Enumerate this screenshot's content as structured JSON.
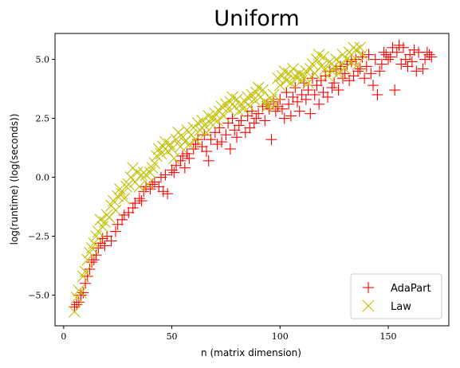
{
  "chart_data": {
    "type": "scatter",
    "title": "Uniform",
    "xlabel": "n (matrix dimension)",
    "ylabel": "log(runtime) (log(seconds))",
    "xlim": [
      -4,
      178
    ],
    "ylim": [
      -6.3,
      6.1
    ],
    "xticks": [
      0,
      50,
      100,
      150
    ],
    "yticks": [
      -5.0,
      -2.5,
      0.0,
      2.5,
      5.0
    ],
    "xtick_labels": [
      "0",
      "50",
      "100",
      "150"
    ],
    "ytick_labels": [
      "−5.0",
      "−2.5",
      "0.0",
      "2.5",
      "5.0"
    ],
    "grid": false,
    "legend_position": "lower-right",
    "series": [
      {
        "name": "AdaPart",
        "marker": "plus",
        "color": "#ff0000",
        "points": [
          [
            5,
            -5.5
          ],
          [
            6,
            -5.4
          ],
          [
            7,
            -5.3
          ],
          [
            8,
            -5.0
          ],
          [
            9,
            -4.9
          ],
          [
            10,
            -4.5
          ],
          [
            11,
            -4.2
          ],
          [
            12,
            -3.9
          ],
          [
            13,
            -3.6
          ],
          [
            14,
            -3.5
          ],
          [
            15,
            -3.3
          ],
          [
            16,
            -3.0
          ],
          [
            17,
            -2.8
          ],
          [
            18,
            -2.6
          ],
          [
            19,
            -2.9
          ],
          [
            20,
            -2.5
          ],
          [
            22,
            -2.7
          ],
          [
            24,
            -2.3
          ],
          [
            25,
            -2.0
          ],
          [
            27,
            -1.8
          ],
          [
            28,
            -1.6
          ],
          [
            30,
            -1.5
          ],
          [
            32,
            -1.3
          ],
          [
            33,
            -1.1
          ],
          [
            35,
            -0.9
          ],
          [
            36,
            -1.0
          ],
          [
            37,
            -0.6
          ],
          [
            38,
            -0.4
          ],
          [
            40,
            -0.5
          ],
          [
            41,
            -0.3
          ],
          [
            42,
            -0.2
          ],
          [
            44,
            -0.4
          ],
          [
            45,
            0.0
          ],
          [
            46,
            -0.6
          ],
          [
            47,
            0.1
          ],
          [
            48,
            -0.7
          ],
          [
            50,
            0.3
          ],
          [
            51,
            0.2
          ],
          [
            52,
            0.5
          ],
          [
            54,
            0.7
          ],
          [
            55,
            0.9
          ],
          [
            56,
            0.4
          ],
          [
            57,
            1.0
          ],
          [
            58,
            0.8
          ],
          [
            60,
            1.2
          ],
          [
            61,
            1.4
          ],
          [
            62,
            1.6
          ],
          [
            64,
            1.3
          ],
          [
            65,
            1.8
          ],
          [
            66,
            1.1
          ],
          [
            67,
            0.7
          ],
          [
            68,
            1.6
          ],
          [
            70,
            1.9
          ],
          [
            71,
            1.4
          ],
          [
            72,
            2.1
          ],
          [
            73,
            1.5
          ],
          [
            75,
            1.8
          ],
          [
            76,
            2.3
          ],
          [
            77,
            1.2
          ],
          [
            78,
            2.5
          ],
          [
            79,
            2.0
          ],
          [
            80,
            1.7
          ],
          [
            81,
            2.2
          ],
          [
            82,
            2.4
          ],
          [
            84,
            1.9
          ],
          [
            85,
            2.6
          ],
          [
            86,
            2.1
          ],
          [
            87,
            2.8
          ],
          [
            88,
            2.3
          ],
          [
            89,
            2.5
          ],
          [
            90,
            2.7
          ],
          [
            92,
            3.0
          ],
          [
            93,
            2.4
          ],
          [
            94,
            3.1
          ],
          [
            95,
            2.9
          ],
          [
            96,
            1.6
          ],
          [
            97,
            3.2
          ],
          [
            98,
            2.8
          ],
          [
            99,
            3.0
          ],
          [
            100,
            3.3
          ],
          [
            101,
            2.9
          ],
          [
            102,
            2.5
          ],
          [
            103,
            3.6
          ],
          [
            104,
            3.1
          ],
          [
            105,
            2.6
          ],
          [
            106,
            3.4
          ],
          [
            107,
            3.8
          ],
          [
            108,
            3.2
          ],
          [
            109,
            2.8
          ],
          [
            110,
            3.5
          ],
          [
            111,
            4.0
          ],
          [
            112,
            3.3
          ],
          [
            113,
            3.7
          ],
          [
            114,
            2.7
          ],
          [
            115,
            4.2
          ],
          [
            116,
            3.5
          ],
          [
            117,
            3.9
          ],
          [
            118,
            3.1
          ],
          [
            119,
            4.1
          ],
          [
            120,
            3.6
          ],
          [
            121,
            4.3
          ],
          [
            122,
            3.4
          ],
          [
            123,
            4.5
          ],
          [
            124,
            3.8
          ],
          [
            125,
            4.0
          ],
          [
            126,
            4.6
          ],
          [
            127,
            3.7
          ],
          [
            128,
            4.7
          ],
          [
            129,
            4.2
          ],
          [
            130,
            4.4
          ],
          [
            131,
            4.8
          ],
          [
            132,
            4.1
          ],
          [
            133,
            4.9
          ],
          [
            134,
            4.3
          ],
          [
            135,
            5.0
          ],
          [
            136,
            4.5
          ],
          [
            137,
            4.6
          ],
          [
            138,
            5.1
          ],
          [
            139,
            4.2
          ],
          [
            140,
            4.7
          ],
          [
            141,
            5.2
          ],
          [
            142,
            4.4
          ],
          [
            143,
            3.9
          ],
          [
            144,
            5.0
          ],
          [
            145,
            3.5
          ],
          [
            146,
            4.5
          ],
          [
            147,
            4.8
          ],
          [
            148,
            5.3
          ],
          [
            149,
            5.2
          ],
          [
            150,
            5.0
          ],
          [
            151,
            5.1
          ],
          [
            152,
            5.5
          ],
          [
            153,
            3.7
          ],
          [
            154,
            5.3
          ],
          [
            155,
            5.6
          ],
          [
            156,
            4.8
          ],
          [
            157,
            5.5
          ],
          [
            158,
            5.0
          ],
          [
            159,
            4.7
          ],
          [
            160,
            5.2
          ],
          [
            161,
            4.9
          ],
          [
            162,
            5.4
          ],
          [
            163,
            4.5
          ],
          [
            164,
            5.3
          ],
          [
            166,
            4.6
          ],
          [
            167,
            5.0
          ],
          [
            168,
            5.3
          ],
          [
            169,
            5.2
          ],
          [
            170,
            5.1
          ]
        ]
      },
      {
        "name": "Law",
        "marker": "x",
        "color": "#bfbf00",
        "points": [
          [
            5,
            -5.7
          ],
          [
            6,
            -5.1
          ],
          [
            7,
            -4.8
          ],
          [
            8,
            -4.9
          ],
          [
            9,
            -4.2
          ],
          [
            10,
            -4.0
          ],
          [
            11,
            -3.5
          ],
          [
            12,
            -3.2
          ],
          [
            13,
            -3.0
          ],
          [
            14,
            -2.8
          ],
          [
            15,
            -2.5
          ],
          [
            16,
            -2.3
          ],
          [
            17,
            -1.8
          ],
          [
            18,
            -2.1
          ],
          [
            19,
            -1.9
          ],
          [
            20,
            -1.6
          ],
          [
            21,
            -1.7
          ],
          [
            22,
            -1.2
          ],
          [
            23,
            -1.0
          ],
          [
            24,
            -1.4
          ],
          [
            25,
            -0.8
          ],
          [
            26,
            -0.5
          ],
          [
            27,
            -0.7
          ],
          [
            28,
            -0.9
          ],
          [
            29,
            -0.4
          ],
          [
            30,
            -0.3
          ],
          [
            31,
            0.0
          ],
          [
            32,
            0.4
          ],
          [
            33,
            -0.2
          ],
          [
            34,
            0.2
          ],
          [
            35,
            -0.4
          ],
          [
            36,
            0.1
          ],
          [
            37,
            0.2
          ],
          [
            38,
            0.1
          ],
          [
            39,
            -0.3
          ],
          [
            40,
            0.2
          ],
          [
            41,
            0.4
          ],
          [
            42,
            0.6
          ],
          [
            43,
            0.9
          ],
          [
            44,
            1.2
          ],
          [
            45,
            1.0
          ],
          [
            46,
            1.3
          ],
          [
            47,
            1.5
          ],
          [
            48,
            1.1
          ],
          [
            49,
            1.4
          ],
          [
            50,
            1.2
          ],
          [
            51,
            0.8
          ],
          [
            52,
            1.6
          ],
          [
            53,
            1.9
          ],
          [
            54,
            1.3
          ],
          [
            55,
            1.7
          ],
          [
            56,
            1.5
          ],
          [
            57,
            2.0
          ],
          [
            58,
            1.4
          ],
          [
            59,
            1.8
          ],
          [
            60,
            2.1
          ],
          [
            61,
            1.6
          ],
          [
            62,
            2.3
          ],
          [
            63,
            2.0
          ],
          [
            64,
            2.4
          ],
          [
            65,
            2.2
          ],
          [
            66,
            1.9
          ],
          [
            67,
            2.6
          ],
          [
            68,
            2.3
          ],
          [
            69,
            2.5
          ],
          [
            70,
            2.7
          ],
          [
            71,
            2.4
          ],
          [
            72,
            2.8
          ],
          [
            73,
            3.0
          ],
          [
            74,
            2.6
          ],
          [
            75,
            3.1
          ],
          [
            76,
            2.9
          ],
          [
            77,
            3.2
          ],
          [
            78,
            3.4
          ],
          [
            79,
            3.0
          ],
          [
            80,
            3.3
          ],
          [
            81,
            2.8
          ],
          [
            82,
            3.1
          ],
          [
            83,
            2.9
          ],
          [
            84,
            3.2
          ],
          [
            85,
            3.4
          ],
          [
            86,
            3.0
          ],
          [
            87,
            3.5
          ],
          [
            88,
            3.3
          ],
          [
            89,
            3.6
          ],
          [
            90,
            3.8
          ],
          [
            91,
            3.4
          ],
          [
            92,
            3.7
          ],
          [
            93,
            3.2
          ],
          [
            94,
            3.0
          ],
          [
            95,
            3.1
          ],
          [
            96,
            3.3
          ],
          [
            97,
            3.5
          ],
          [
            98,
            3.1
          ],
          [
            99,
            4.2
          ],
          [
            100,
            3.9
          ],
          [
            101,
            4.3
          ],
          [
            102,
            4.5
          ],
          [
            103,
            4.1
          ],
          [
            104,
            4.4
          ],
          [
            105,
            4.0
          ],
          [
            106,
            4.6
          ],
          [
            107,
            4.3
          ],
          [
            108,
            4.2
          ],
          [
            109,
            4.4
          ],
          [
            110,
            4.1
          ],
          [
            111,
            4.3
          ],
          [
            112,
            4.5
          ],
          [
            113,
            4.0
          ],
          [
            114,
            4.6
          ],
          [
            115,
            4.8
          ],
          [
            116,
            4.4
          ],
          [
            117,
            5.0
          ],
          [
            118,
            5.2
          ],
          [
            119,
            4.7
          ],
          [
            120,
            5.1
          ],
          [
            121,
            4.6
          ],
          [
            122,
            4.3
          ],
          [
            123,
            4.9
          ],
          [
            124,
            4.5
          ],
          [
            125,
            4.7
          ],
          [
            126,
            5.0
          ],
          [
            127,
            4.4
          ],
          [
            128,
            4.8
          ],
          [
            129,
            5.2
          ],
          [
            130,
            4.6
          ],
          [
            131,
            5.0
          ],
          [
            132,
            5.3
          ],
          [
            133,
            4.9
          ],
          [
            134,
            5.5
          ],
          [
            135,
            5.4
          ],
          [
            136,
            4.8
          ],
          [
            137,
            5.5
          ],
          [
            138,
            5.2
          ]
        ]
      }
    ]
  }
}
